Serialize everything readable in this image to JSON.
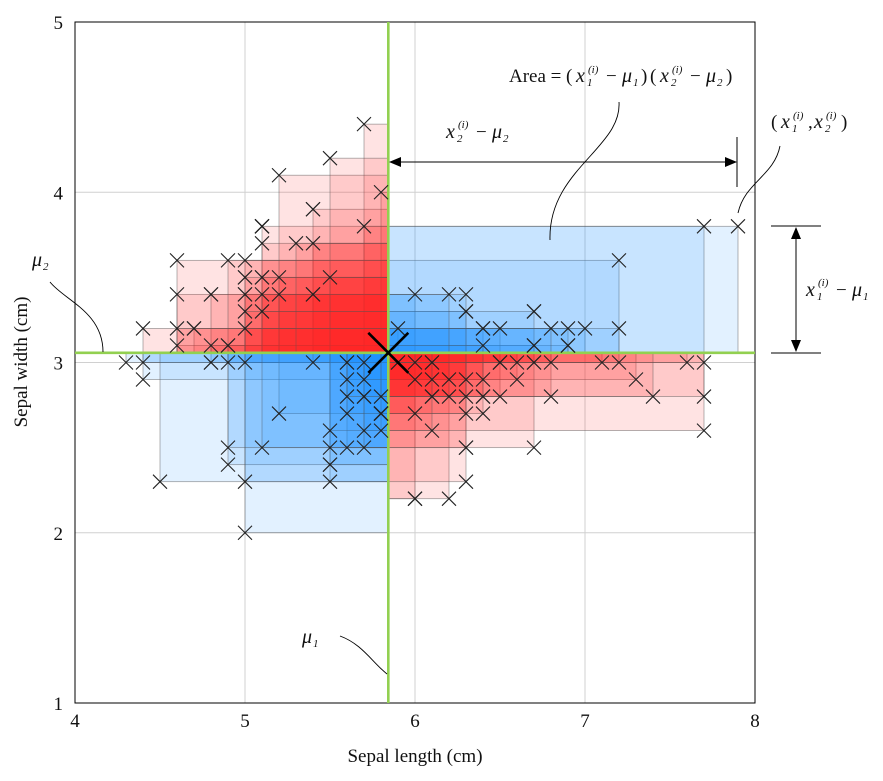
{
  "chart_data": {
    "type": "scatter",
    "title": "",
    "xlabel": "Sepal length (cm)",
    "ylabel": "Sepal width (cm)",
    "xlim": [
      4,
      8
    ],
    "ylim": [
      1,
      5
    ],
    "x_ticks": [
      "4",
      "5",
      "6",
      "7",
      "8"
    ],
    "y_ticks": [
      "1",
      "2",
      "3",
      "4",
      "5"
    ],
    "grid": true,
    "mean": {
      "x": 5.843,
      "y": 3.057
    },
    "mean_color": "#92D050",
    "positive_product_color": "#1E90FF",
    "negative_product_color": "#FF2A2A",
    "marker": "x",
    "series": [
      {
        "x": [
          5.1,
          4.9,
          4.7,
          4.6,
          5.0,
          5.4,
          4.6,
          5.0,
          4.4,
          4.9,
          5.4,
          4.8,
          4.8,
          4.3,
          5.8,
          5.7,
          5.4,
          5.1,
          5.7,
          5.1,
          5.4,
          5.1,
          4.6,
          5.1,
          4.8,
          5.0,
          5.0,
          5.2,
          5.2,
          4.7,
          4.8,
          5.4,
          5.2,
          5.5,
          4.9,
          5.0,
          5.5,
          4.9,
          4.4,
          5.1,
          5.0,
          4.5,
          4.4,
          5.0,
          5.1,
          4.8,
          5.1,
          4.6,
          5.3,
          5.0,
          7.0,
          6.4,
          6.9,
          5.5,
          6.5,
          5.7,
          6.3,
          4.9,
          6.6,
          5.2,
          5.0,
          5.9,
          6.0,
          6.1,
          5.6,
          6.7,
          5.6,
          5.8,
          6.2,
          5.6,
          5.9,
          6.1,
          6.3,
          6.1,
          6.4,
          6.6,
          6.8,
          6.7,
          6.0,
          5.7,
          5.5,
          5.5,
          5.8,
          6.0,
          5.4,
          6.0,
          6.7,
          6.3,
          5.6,
          5.5,
          5.5,
          6.1,
          5.8,
          5.0,
          5.6,
          5.7,
          5.7,
          6.2,
          5.1,
          5.7,
          6.3,
          5.8,
          7.1,
          6.3,
          6.5,
          7.6,
          4.9,
          7.3,
          6.7,
          7.2,
          6.5,
          6.4,
          6.8,
          5.7,
          5.8,
          6.4,
          6.5,
          7.7,
          7.7,
          6.0,
          6.9,
          5.6,
          7.7,
          6.3,
          6.7,
          7.2,
          6.2,
          6.1,
          6.4,
          7.2,
          7.4,
          7.9,
          6.4,
          6.3,
          6.1,
          7.7,
          6.3,
          6.4,
          6.0,
          6.9,
          6.7,
          6.9,
          5.8,
          6.8,
          6.7,
          6.7,
          6.3,
          6.5,
          6.2,
          5.9
        ],
        "y": [
          3.5,
          3.0,
          3.2,
          3.1,
          3.6,
          3.9,
          3.4,
          3.4,
          2.9,
          3.1,
          3.7,
          3.4,
          3.0,
          3.0,
          4.0,
          4.4,
          3.9,
          3.5,
          3.8,
          3.8,
          3.4,
          3.7,
          3.6,
          3.3,
          3.4,
          3.0,
          3.4,
          3.5,
          3.4,
          3.2,
          3.1,
          3.4,
          4.1,
          4.2,
          3.1,
          3.2,
          3.5,
          3.6,
          3.0,
          3.4,
          3.5,
          2.3,
          3.2,
          3.5,
          3.8,
          3.0,
          3.8,
          3.2,
          3.7,
          3.3,
          3.2,
          3.2,
          3.1,
          2.3,
          2.8,
          2.8,
          3.3,
          2.4,
          2.9,
          2.7,
          2.0,
          3.0,
          2.2,
          2.9,
          2.9,
          3.1,
          3.0,
          2.7,
          2.2,
          2.5,
          3.2,
          2.8,
          2.5,
          2.8,
          2.9,
          3.0,
          2.8,
          3.0,
          2.9,
          2.6,
          2.4,
          2.4,
          2.7,
          2.7,
          3.0,
          3.4,
          3.1,
          2.3,
          3.0,
          2.5,
          2.6,
          3.0,
          2.6,
          2.3,
          2.7,
          3.0,
          2.9,
          2.9,
          2.5,
          2.8,
          3.3,
          2.7,
          3.0,
          2.9,
          3.0,
          3.0,
          2.5,
          2.9,
          2.5,
          3.6,
          3.2,
          2.7,
          3.0,
          2.5,
          2.8,
          3.2,
          3.0,
          3.8,
          2.6,
          2.2,
          3.2,
          2.8,
          2.8,
          2.7,
          3.3,
          3.2,
          2.8,
          3.0,
          2.8,
          3.0,
          2.8,
          3.8,
          2.8,
          2.8,
          2.6,
          3.0,
          3.4,
          3.1,
          3.0,
          3.1,
          3.1,
          3.1,
          2.7,
          3.2,
          3.3,
          3.0,
          2.5,
          3.0,
          3.4,
          3.0
        ]
      }
    ]
  },
  "annotations": {
    "area_prefix": "Area =",
    "x_var": "x",
    "sup_i": "(i)",
    "sub_1": "1",
    "sub_2": "2",
    "mu": "μ",
    "minus": "−",
    "lparen": "(",
    "rparen": ")",
    "comma": ","
  }
}
